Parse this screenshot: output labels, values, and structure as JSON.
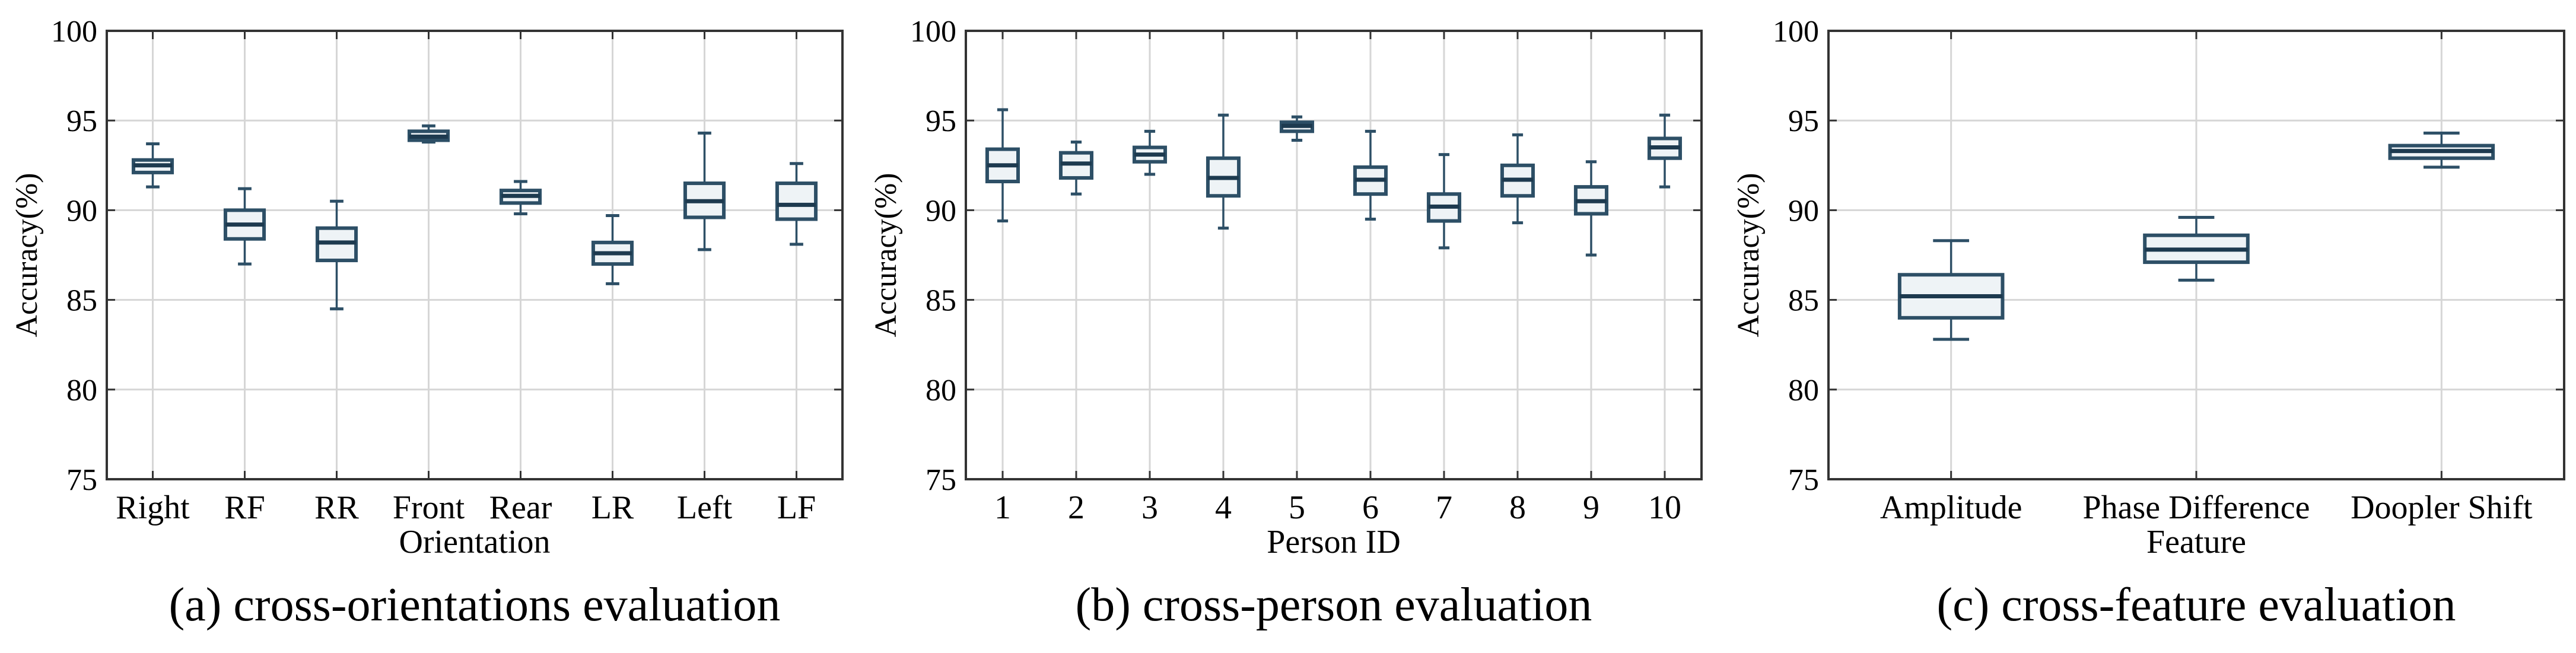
{
  "chart_data": [
    {
      "type": "box",
      "title": "(a) cross-orientations evaluation",
      "xlabel": "Orientation",
      "ylabel": "Accuracy(%)",
      "ylim": [
        75,
        100
      ],
      "yticks": [
        75,
        80,
        85,
        90,
        95,
        100
      ],
      "grid": true,
      "categories": [
        "Right",
        "RF",
        "RR",
        "Front",
        "Rear",
        "LR",
        "Left",
        "LF"
      ],
      "boxes": [
        {
          "min": 91.3,
          "q1": 92.1,
          "median": 92.5,
          "q3": 92.8,
          "max": 93.7
        },
        {
          "min": 87.0,
          "q1": 88.4,
          "median": 89.2,
          "q3": 90.0,
          "max": 91.2
        },
        {
          "min": 84.5,
          "q1": 87.2,
          "median": 88.2,
          "q3": 89.0,
          "max": 90.5
        },
        {
          "min": 93.8,
          "q1": 93.9,
          "median": 94.1,
          "q3": 94.4,
          "max": 94.7
        },
        {
          "min": 89.8,
          "q1": 90.4,
          "median": 90.8,
          "q3": 91.1,
          "max": 91.6
        },
        {
          "min": 85.9,
          "q1": 87.0,
          "median": 87.6,
          "q3": 88.2,
          "max": 89.7
        },
        {
          "min": 87.8,
          "q1": 89.6,
          "median": 90.5,
          "q3": 91.5,
          "max": 94.3
        },
        {
          "min": 88.1,
          "q1": 89.5,
          "median": 90.3,
          "q3": 91.5,
          "max": 92.6
        }
      ]
    },
    {
      "type": "box",
      "title": "(b) cross-person evaluation",
      "xlabel": "Person ID",
      "ylabel": "Accuracy(%)",
      "ylim": [
        75,
        100
      ],
      "yticks": [
        75,
        80,
        85,
        90,
        95,
        100
      ],
      "grid": true,
      "categories": [
        "1",
        "2",
        "3",
        "4",
        "5",
        "6",
        "7",
        "8",
        "9",
        "10"
      ],
      "boxes": [
        {
          "min": 89.4,
          "q1": 91.6,
          "median": 92.5,
          "q3": 93.4,
          "max": 95.6
        },
        {
          "min": 90.9,
          "q1": 91.8,
          "median": 92.6,
          "q3": 93.2,
          "max": 93.8
        },
        {
          "min": 92.0,
          "q1": 92.7,
          "median": 93.1,
          "q3": 93.5,
          "max": 94.4
        },
        {
          "min": 89.0,
          "q1": 90.8,
          "median": 91.8,
          "q3": 92.9,
          "max": 95.3
        },
        {
          "min": 93.9,
          "q1": 94.4,
          "median": 94.7,
          "q3": 94.9,
          "max": 95.2
        },
        {
          "min": 89.5,
          "q1": 90.9,
          "median": 91.7,
          "q3": 92.4,
          "max": 94.4
        },
        {
          "min": 87.9,
          "q1": 89.4,
          "median": 90.2,
          "q3": 90.9,
          "max": 93.1
        },
        {
          "min": 89.3,
          "q1": 90.8,
          "median": 91.7,
          "q3": 92.5,
          "max": 94.2
        },
        {
          "min": 87.5,
          "q1": 89.8,
          "median": 90.5,
          "q3": 91.3,
          "max": 92.7
        },
        {
          "min": 91.3,
          "q1": 92.9,
          "median": 93.5,
          "q3": 94.0,
          "max": 95.3
        }
      ]
    },
    {
      "type": "box",
      "title": "(c) cross-feature evaluation",
      "xlabel": "Feature",
      "ylabel": "Accuracy(%)",
      "ylim": [
        75,
        100
      ],
      "yticks": [
        75,
        80,
        85,
        90,
        95,
        100
      ],
      "grid": true,
      "categories": [
        "Amplitude",
        "Phase Difference",
        "Doopler Shift"
      ],
      "boxes": [
        {
          "min": 82.8,
          "q1": 84.0,
          "median": 85.2,
          "q3": 86.4,
          "max": 88.3
        },
        {
          "min": 86.1,
          "q1": 87.1,
          "median": 87.8,
          "q3": 88.6,
          "max": 89.6
        },
        {
          "min": 92.4,
          "q1": 92.9,
          "median": 93.3,
          "q3": 93.6,
          "max": 94.3
        }
      ]
    }
  ]
}
